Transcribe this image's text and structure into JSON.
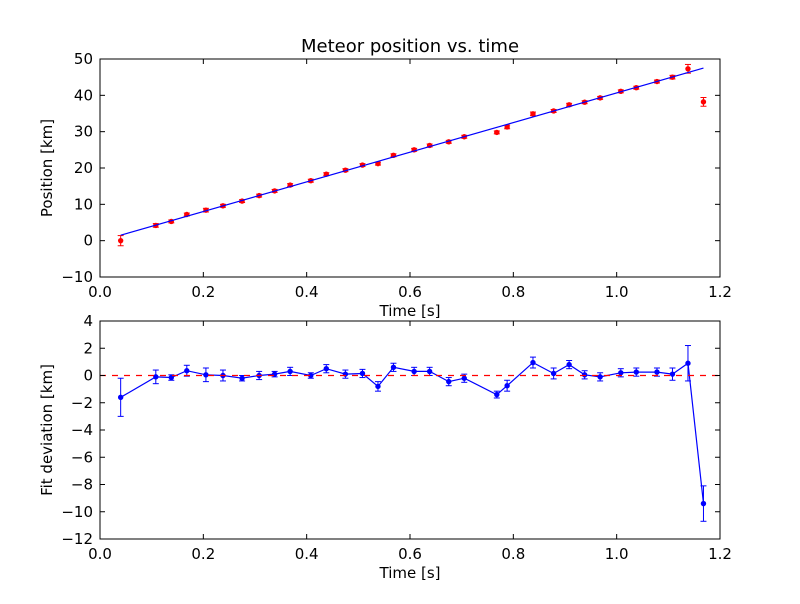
{
  "chart_data": [
    {
      "type": "scatter",
      "title": "Meteor position vs. time",
      "xlabel": "Time [s]",
      "ylabel": "Position [km]",
      "xlim": [
        0.0,
        1.2
      ],
      "ylim": [
        -10,
        50
      ],
      "xticks": [
        "0.0",
        "0.2",
        "0.4",
        "0.6",
        "0.8",
        "1.0",
        "1.2"
      ],
      "yticks": [
        "−10",
        "0",
        "10",
        "20",
        "30",
        "40",
        "50"
      ],
      "xtick_values": [
        0.0,
        0.2,
        0.4,
        0.6,
        0.8,
        1.0,
        1.2
      ],
      "ytick_values": [
        -10,
        0,
        10,
        20,
        30,
        40,
        50
      ],
      "grid": false,
      "series": [
        {
          "kind": "errorbar",
          "color": "#ff0000",
          "x": [
            0.04,
            0.108,
            0.138,
            0.168,
            0.205,
            0.238,
            0.275,
            0.308,
            0.338,
            0.368,
            0.408,
            0.438,
            0.475,
            0.508,
            0.538,
            0.568,
            0.608,
            0.638,
            0.675,
            0.705,
            0.768,
            0.788,
            0.838,
            0.878,
            0.908,
            0.938,
            0.968,
            1.008,
            1.038,
            1.078,
            1.108,
            1.138,
            1.168
          ],
          "y": [
            0.0,
            4.2,
            5.3,
            7.2,
            8.4,
            9.6,
            10.9,
            12.4,
            13.7,
            15.3,
            16.5,
            18.3,
            19.4,
            20.8,
            21.2,
            23.5,
            25.0,
            26.2,
            27.2,
            28.6,
            29.8,
            31.3,
            34.9,
            35.7,
            37.4,
            38.1,
            39.3,
            41.1,
            42.1,
            43.8,
            45.0,
            47.3,
            38.2
          ],
          "yerr": [
            1.4,
            0.5,
            0.4,
            0.4,
            0.5,
            0.4,
            0.4,
            0.4,
            0.4,
            0.4,
            0.4,
            0.4,
            0.4,
            0.4,
            0.4,
            0.4,
            0.4,
            0.4,
            0.4,
            0.4,
            0.4,
            0.5,
            0.5,
            0.4,
            0.4,
            0.4,
            0.4,
            0.4,
            0.4,
            0.4,
            0.5,
            1.2,
            1.2
          ]
        },
        {
          "kind": "line",
          "color": "#0000ff",
          "x": [
            0.04,
            1.168
          ],
          "y": [
            1.5,
            47.5
          ]
        }
      ]
    },
    {
      "type": "line",
      "title": "",
      "xlabel": "Time [s]",
      "ylabel": "Fit deviation [km]",
      "xlim": [
        0.0,
        1.2
      ],
      "ylim": [
        -12,
        4
      ],
      "xticks": [
        "0.0",
        "0.2",
        "0.4",
        "0.6",
        "0.8",
        "1.0",
        "1.2"
      ],
      "yticks": [
        "−12",
        "−10",
        "−8",
        "−6",
        "−4",
        "−2",
        "0",
        "2",
        "4"
      ],
      "xtick_values": [
        0.0,
        0.2,
        0.4,
        0.6,
        0.8,
        1.0,
        1.2
      ],
      "ytick_values": [
        -12,
        -10,
        -8,
        -6,
        -4,
        -2,
        0,
        2,
        4
      ],
      "grid": false,
      "series": [
        {
          "kind": "errorbar-line",
          "color": "#0000ff",
          "x": [
            0.04,
            0.108,
            0.138,
            0.168,
            0.205,
            0.238,
            0.275,
            0.308,
            0.338,
            0.368,
            0.408,
            0.438,
            0.475,
            0.508,
            0.538,
            0.568,
            0.608,
            0.638,
            0.675,
            0.705,
            0.768,
            0.788,
            0.838,
            0.878,
            0.908,
            0.938,
            0.968,
            1.008,
            1.038,
            1.078,
            1.108,
            1.138,
            1.168
          ],
          "y": [
            -1.6,
            -0.1,
            -0.15,
            0.35,
            0.05,
            0.0,
            -0.2,
            0.0,
            0.1,
            0.3,
            0.0,
            0.5,
            0.1,
            0.15,
            -0.8,
            0.6,
            0.3,
            0.3,
            -0.45,
            -0.2,
            -1.4,
            -0.75,
            0.95,
            0.15,
            0.8,
            0.05,
            -0.1,
            0.2,
            0.25,
            0.25,
            0.1,
            0.9,
            -9.4
          ],
          "yerr": [
            1.4,
            0.5,
            0.2,
            0.4,
            0.5,
            0.4,
            0.2,
            0.3,
            0.2,
            0.3,
            0.2,
            0.3,
            0.3,
            0.3,
            0.35,
            0.3,
            0.3,
            0.3,
            0.3,
            0.3,
            0.25,
            0.4,
            0.4,
            0.4,
            0.3,
            0.3,
            0.3,
            0.3,
            0.3,
            0.3,
            0.45,
            1.3,
            1.3
          ]
        },
        {
          "kind": "dashed-line",
          "color": "#ff0000",
          "x": [
            0.0,
            1.2
          ],
          "y": [
            0,
            0
          ]
        }
      ]
    }
  ]
}
